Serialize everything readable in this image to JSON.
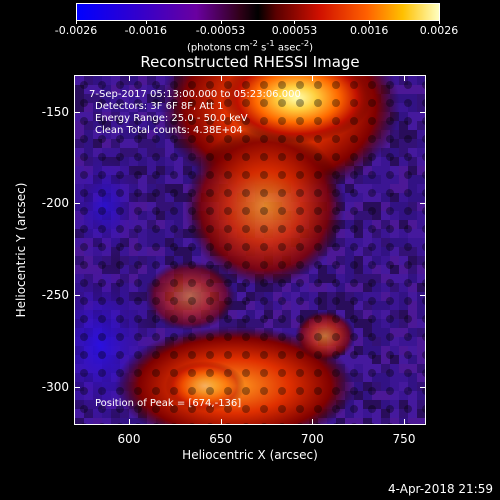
{
  "colorbar": {
    "tick_labels": [
      "-0.0026",
      "-0.0016",
      "-0.00053",
      "0.00053",
      "0.0016",
      "0.0026"
    ],
    "units_html": "(photons cm<sup>-2</sup> s<sup>-1</sup> asec<sup>-2</sup>)"
  },
  "title": "Reconstructed RHESSI Image",
  "annotations": {
    "time_range": "7-Sep-2017 05:13:00.000 to 05:23:06.000",
    "detectors": "Detectors: 3F 6F 8F, Att 1",
    "energy_range": "Energy Range: 25.0 - 50.0 keV",
    "clean_counts": "Clean     Total counts: 4.38E+04",
    "peak_position": "Position of Peak = [674,-136]"
  },
  "axes": {
    "xlabel": "Heliocentric X (arcsec)",
    "ylabel": "Heliocentric Y (arcsec)",
    "x_ticks": [
      "600",
      "650",
      "700",
      "750"
    ],
    "y_ticks": [
      "-150",
      "-200",
      "-250",
      "-300"
    ]
  },
  "footer": {
    "timestamp": "4-Apr-2018 21:59"
  },
  "colors": {
    "background": "#000000",
    "text": "#ffffff"
  },
  "chart_data": {
    "type": "heatmap",
    "title": "Reconstructed RHESSI Image",
    "xlabel": "Heliocentric X (arcsec)",
    "ylabel": "Heliocentric Y (arcsec)",
    "xlim": [
      570,
      762
    ],
    "ylim": [
      -321,
      -130
    ],
    "x_ticks": [
      600,
      650,
      700,
      750
    ],
    "y_ticks": [
      -150,
      -200,
      -250,
      -300
    ],
    "colorbar_range": [
      -0.0026,
      0.0026
    ],
    "colorbar_ticks": [
      -0.0026,
      -0.0016,
      -0.00053,
      0.00053,
      0.0016,
      0.0026
    ],
    "peak_position": [
      674,
      -136
    ],
    "sources": [
      {
        "x": 674,
        "y": -136,
        "relative_intensity": 1.0
      },
      {
        "x": 655,
        "y": -300,
        "relative_intensity": 0.55
      }
    ]
  }
}
